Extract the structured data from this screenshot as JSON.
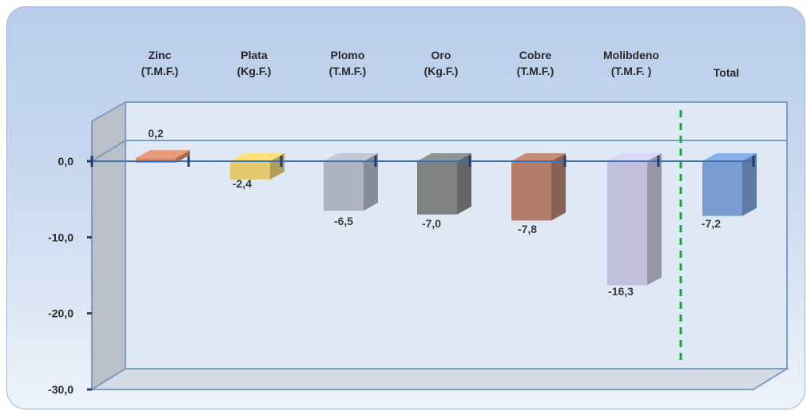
{
  "chart_data": {
    "type": "bar",
    "title": "",
    "xlabel": "",
    "ylabel": "",
    "ylim": [
      -30,
      5
    ],
    "yticks": [
      "0,0",
      "-10,0",
      "-20,0",
      "-30,0"
    ],
    "ytick_values": [
      0,
      -10,
      -20,
      -30
    ],
    "categories": [
      [
        "Zinc",
        "(T.M.F.)"
      ],
      [
        "Plata",
        "(Kg.F.)"
      ],
      [
        "Plomo",
        "(T.M.F.)"
      ],
      [
        "Oro",
        "(Kg.F.)"
      ],
      [
        "Cobre",
        "(T.M.F.)"
      ],
      [
        "Molibdeno",
        "(T.M.F. )"
      ],
      [
        "Total"
      ]
    ],
    "values": [
      0.2,
      -2.4,
      -6.5,
      -7.0,
      -7.8,
      -16.3,
      -7.2
    ],
    "value_labels": [
      "0,2",
      "-2,4",
      "-6,5",
      "-7,0",
      "-7,8",
      "-16,3",
      "-7,2"
    ],
    "colors": [
      "#d08a6c",
      "#e4c96e",
      "#aeb3c2",
      "#7f8483",
      "#b07e6a",
      "#c2bfdd",
      "#7a9ed2"
    ],
    "separator": {
      "style": "dashed",
      "color": "#1aa53b",
      "after_category": "Molibdeno"
    },
    "grid": false,
    "legend": "none"
  }
}
